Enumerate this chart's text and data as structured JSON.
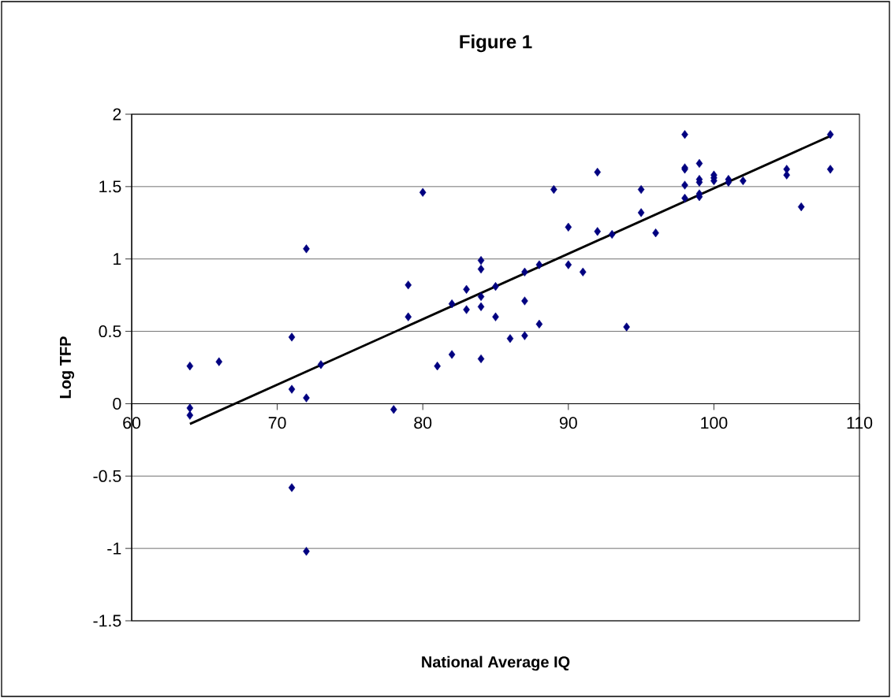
{
  "chart_data": {
    "type": "scatter",
    "title": "Figure 1",
    "xlabel": "National Average IQ",
    "ylabel": "Log TFP",
    "xlim": [
      60,
      110
    ],
    "xticks": [
      60,
      70,
      80,
      90,
      100,
      110
    ],
    "ylim": [
      -1.5,
      2
    ],
    "yticks": [
      -1.5,
      -1,
      -0.5,
      0,
      0.5,
      1,
      1.5,
      2
    ],
    "grid": "y",
    "marker": "diamond",
    "series": [
      {
        "color": "#000080",
        "x": [
          64,
          64,
          64,
          66,
          71,
          71,
          71,
          72,
          72,
          72,
          73,
          78,
          79,
          79,
          80,
          81,
          82,
          82,
          83,
          83,
          84,
          84,
          84,
          84,
          84,
          85,
          85,
          86,
          87,
          87,
          87,
          88,
          88,
          89,
          90,
          90,
          91,
          92,
          92,
          93,
          94,
          95,
          95,
          96,
          98,
          98,
          98,
          98,
          98,
          99,
          99,
          99,
          99,
          99,
          100,
          100,
          100,
          101,
          101,
          102,
          105,
          105,
          106,
          108,
          108
        ],
        "values": [
          0.26,
          -0.03,
          -0.08,
          0.29,
          0.46,
          0.1,
          -0.58,
          1.07,
          0.04,
          -1.02,
          0.27,
          -0.04,
          0.82,
          0.6,
          1.46,
          0.26,
          0.69,
          0.34,
          0.79,
          0.65,
          0.99,
          0.93,
          0.74,
          0.67,
          0.31,
          0.81,
          0.6,
          0.45,
          0.91,
          0.71,
          0.47,
          0.96,
          0.55,
          1.48,
          1.22,
          0.96,
          0.91,
          1.6,
          1.19,
          1.17,
          0.53,
          1.48,
          1.32,
          1.18,
          1.86,
          1.63,
          1.62,
          1.51,
          1.42,
          1.66,
          1.55,
          1.53,
          1.45,
          1.43,
          1.58,
          1.56,
          1.54,
          1.55,
          1.53,
          1.54,
          1.62,
          1.58,
          1.36,
          1.86,
          1.62
        ]
      },
      {
        "type": "line",
        "color": "#000000",
        "marker": "none",
        "x": [
          64,
          108
        ],
        "values": [
          -0.14,
          1.85
        ]
      }
    ]
  }
}
